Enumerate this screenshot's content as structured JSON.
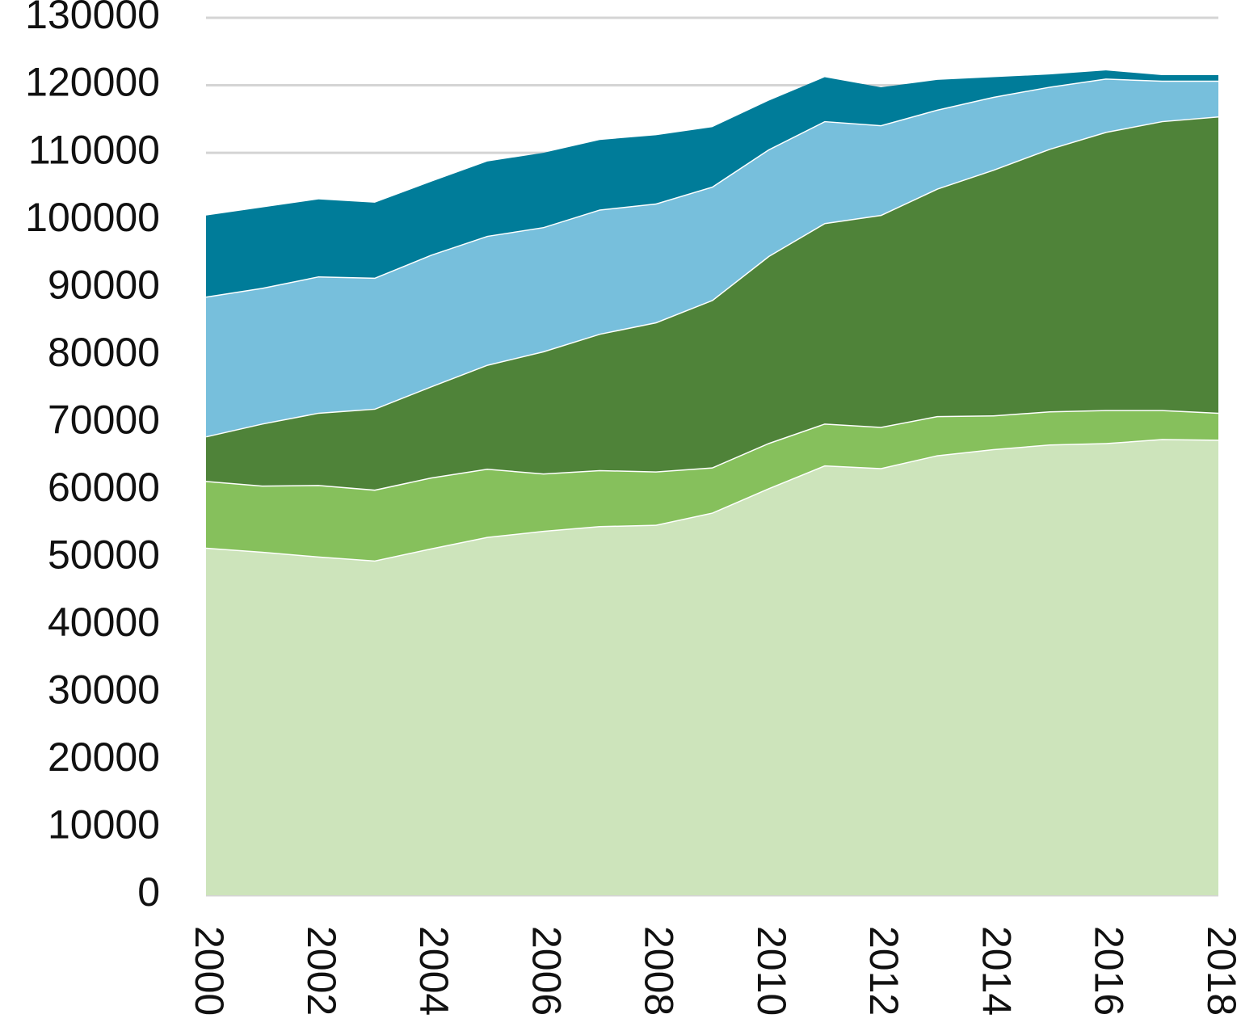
{
  "chart_data": {
    "type": "stacked-area",
    "x": [
      2000,
      2001,
      2002,
      2003,
      2004,
      2005,
      2006,
      2007,
      2008,
      2009,
      2010,
      2011,
      2012,
      2013,
      2014,
      2015,
      2016,
      2017,
      2018
    ],
    "xlim": [
      2000,
      2018
    ],
    "xticks": [
      2000,
      2002,
      2004,
      2006,
      2008,
      2010,
      2012,
      2014,
      2016,
      2018
    ],
    "ylim": [
      0,
      130000
    ],
    "yticks": [
      0,
      10000,
      20000,
      30000,
      40000,
      50000,
      60000,
      70000,
      80000,
      90000,
      100000,
      110000,
      120000,
      130000
    ],
    "grid": true,
    "series": [
      {
        "color": "#cde4bb",
        "values": [
          51500,
          50900,
          50200,
          49600,
          51400,
          53100,
          54000,
          54700,
          54900,
          56700,
          60300,
          63700,
          63300,
          65200,
          66100,
          66800,
          67000,
          67600,
          67500
        ]
      },
      {
        "color": "#86c05c",
        "values": [
          9900,
          9800,
          10600,
          10500,
          10500,
          10100,
          8500,
          8300,
          7900,
          6700,
          6700,
          6200,
          6100,
          5800,
          5000,
          4900,
          4900,
          4300,
          4000
        ]
      },
      {
        "color": "#4f8339",
        "values": [
          6600,
          9200,
          10700,
          12000,
          13500,
          15400,
          18100,
          20200,
          22100,
          24800,
          27700,
          29700,
          31400,
          33700,
          36400,
          38900,
          41200,
          42800,
          43900
        ]
      },
      {
        "color": "#77bfdc",
        "values": [
          20700,
          20100,
          20200,
          19400,
          19500,
          19100,
          18400,
          18400,
          17600,
          16800,
          15800,
          15100,
          13300,
          11700,
          10800,
          9200,
          7900,
          6000,
          5300
        ]
      },
      {
        "color": "#007c99",
        "values": [
          12000,
          11900,
          11400,
          11100,
          10800,
          11000,
          11000,
          10300,
          10100,
          8800,
          7200,
          6500,
          5600,
          4400,
          2900,
          1800,
          1200,
          800,
          800
        ]
      }
    ]
  }
}
